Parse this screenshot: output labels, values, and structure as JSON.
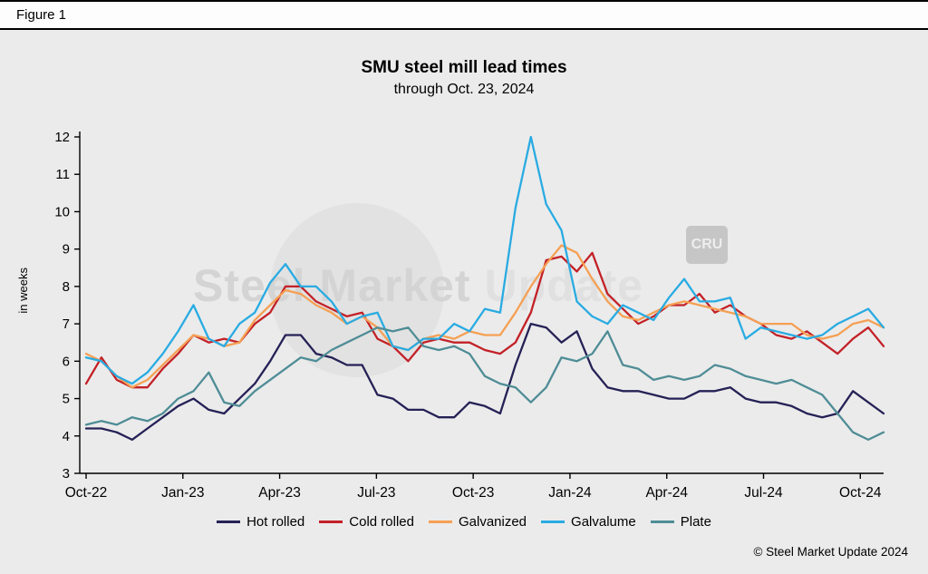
{
  "figure_label": "Figure 1",
  "watermark": {
    "text_primary": "Steel Market",
    "text_secondary": "Update",
    "badge": "CRU"
  },
  "footer": {
    "copyright": "© Steel Market Update 2024"
  },
  "chart_data": {
    "type": "line",
    "title": "SMU steel mill lead times",
    "subtitle": "through Oct. 23, 2024",
    "ylabel": "in weeks",
    "ylim": [
      3,
      12
    ],
    "y_ticks": [
      3,
      4,
      5,
      6,
      7,
      8,
      9,
      10,
      11,
      12
    ],
    "x_ticks": [
      "Oct-22",
      "Jan-23",
      "Apr-23",
      "Jul-23",
      "Oct-23",
      "Jan-24",
      "Apr-24",
      "Jul-24",
      "Oct-24"
    ],
    "grid": false,
    "legend_position": "bottom",
    "background": "#ebebeb",
    "series": [
      {
        "name": "Hot rolled",
        "color": "#252156",
        "values": [
          4.2,
          4.2,
          4.1,
          3.9,
          4.2,
          4.5,
          4.8,
          5.0,
          4.7,
          4.6,
          5.0,
          5.4,
          6.0,
          6.7,
          6.7,
          6.2,
          6.1,
          5.9,
          5.9,
          5.1,
          5.0,
          4.7,
          4.7,
          4.5,
          4.5,
          4.9,
          4.8,
          4.6,
          5.9,
          7.0,
          6.9,
          6.5,
          6.8,
          5.8,
          5.3,
          5.2,
          5.2,
          5.1,
          5.0,
          5.0,
          5.2,
          5.2,
          5.3,
          5.0,
          4.9,
          4.9,
          4.8,
          4.6,
          4.5,
          4.6,
          5.2,
          4.9,
          4.6
        ]
      },
      {
        "name": "Cold rolled",
        "color": "#c32127",
        "values": [
          5.4,
          6.1,
          5.5,
          5.3,
          5.3,
          5.8,
          6.2,
          6.7,
          6.5,
          6.6,
          6.5,
          7.0,
          7.3,
          8.0,
          8.0,
          7.6,
          7.4,
          7.2,
          7.3,
          6.6,
          6.4,
          6.0,
          6.5,
          6.6,
          6.5,
          6.5,
          6.3,
          6.2,
          6.5,
          7.3,
          8.7,
          8.8,
          8.4,
          8.9,
          7.8,
          7.4,
          7.0,
          7.2,
          7.5,
          7.5,
          7.8,
          7.3,
          7.5,
          7.2,
          7.0,
          6.7,
          6.6,
          6.8,
          6.5,
          6.2,
          6.6,
          6.9,
          6.4
        ]
      },
      {
        "name": "Galvanized",
        "color": "#f5a054",
        "values": [
          6.2,
          6.0,
          5.6,
          5.3,
          5.5,
          5.9,
          6.3,
          6.7,
          6.6,
          6.4,
          6.5,
          7.1,
          7.5,
          7.9,
          7.8,
          7.5,
          7.3,
          7.0,
          7.2,
          6.9,
          6.4,
          6.3,
          6.6,
          6.7,
          6.6,
          6.8,
          6.7,
          6.7,
          7.3,
          8.0,
          8.6,
          9.1,
          8.9,
          8.2,
          7.6,
          7.2,
          7.1,
          7.3,
          7.5,
          7.6,
          7.5,
          7.4,
          7.3,
          7.2,
          7.0,
          7.0,
          7.0,
          6.7,
          6.6,
          6.7,
          7.0,
          7.1,
          6.9
        ]
      },
      {
        "name": "Galvalume",
        "color": "#29abe2",
        "values": [
          6.1,
          6.0,
          5.6,
          5.4,
          5.7,
          6.2,
          6.8,
          7.5,
          6.6,
          6.4,
          7.0,
          7.3,
          8.1,
          8.6,
          8.0,
          8.0,
          7.6,
          7.0,
          7.2,
          7.3,
          6.4,
          6.3,
          6.6,
          6.6,
          7.0,
          6.8,
          7.4,
          7.3,
          10.1,
          12.0,
          10.2,
          9.5,
          7.6,
          7.2,
          7.0,
          7.5,
          7.3,
          7.1,
          7.7,
          8.2,
          7.6,
          7.6,
          7.7,
          6.6,
          6.9,
          6.8,
          6.7,
          6.6,
          6.7,
          7.0,
          7.2,
          7.4,
          6.9
        ]
      },
      {
        "name": "Plate",
        "color": "#4f8d96",
        "values": [
          4.3,
          4.4,
          4.3,
          4.5,
          4.4,
          4.6,
          5.0,
          5.2,
          5.7,
          4.9,
          4.8,
          5.2,
          5.5,
          5.8,
          6.1,
          6.0,
          6.3,
          6.5,
          6.7,
          6.9,
          6.8,
          6.9,
          6.4,
          6.3,
          6.4,
          6.2,
          5.6,
          5.4,
          5.3,
          4.9,
          5.3,
          6.1,
          6.0,
          6.2,
          6.8,
          5.9,
          5.8,
          5.5,
          5.6,
          5.5,
          5.6,
          5.9,
          5.8,
          5.6,
          5.5,
          5.4,
          5.5,
          5.3,
          5.1,
          4.6,
          4.1,
          3.9,
          4.1
        ]
      }
    ]
  }
}
